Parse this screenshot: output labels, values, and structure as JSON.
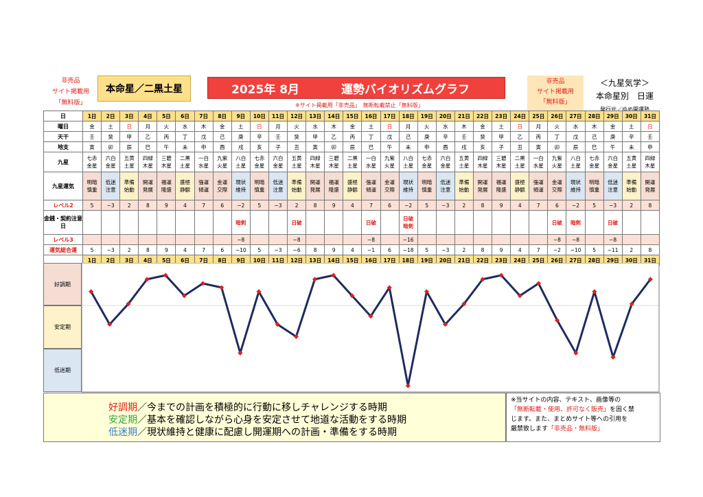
{
  "header": {
    "note_left_1": "非売品",
    "note_left_2": "サイト掲載用",
    "note_left_3": "「無料版」",
    "honmei": "本命星／二黒土星",
    "year_month": "2025年 8月",
    "title": "運勢バイオリズムグラフ",
    "note_right_1": "非売品",
    "note_right_2": "サイト掲載用",
    "note_right_3": "「無料版」",
    "right_1": "＜九星気学＞",
    "right_2": "本命星別　日運",
    "right_3": "発行元／ゆめ開運塾",
    "subnote": "※サイト掲載用「非売品」　無断転載禁止「無料版」"
  },
  "labels": {
    "day": "日",
    "weekday": "曜日",
    "tenkan": "天干",
    "chishi": "地支",
    "kyusei": "九星",
    "unki": "九星運気",
    "level2": "レベル2",
    "kinsen": "金銭・契約注意日",
    "level3": "レベル3",
    "total": "運気総合運"
  },
  "days": [
    "1日",
    "2日",
    "3日",
    "4日",
    "5日",
    "6日",
    "7日",
    "8日",
    "9日",
    "10日",
    "11日",
    "12日",
    "13日",
    "14日",
    "15日",
    "16日",
    "17日",
    "18日",
    "19日",
    "20日",
    "21日",
    "22日",
    "23日",
    "24日",
    "25日",
    "26日",
    "27日",
    "28日",
    "29日",
    "30日",
    "31日"
  ],
  "weekdays": [
    "金",
    "土",
    "日",
    "月",
    "火",
    "水",
    "木",
    "金",
    "土",
    "日",
    "月",
    "火",
    "水",
    "木",
    "金",
    "土",
    "日",
    "月",
    "火",
    "水",
    "木",
    "金",
    "土",
    "日",
    "月",
    "火",
    "水",
    "木",
    "金",
    "土",
    "日"
  ],
  "tenkan": [
    "壬",
    "癸",
    "甲",
    "乙",
    "丙",
    "丁",
    "戊",
    "己",
    "庚",
    "辛",
    "壬",
    "癸",
    "甲",
    "乙",
    "丙",
    "丁",
    "戊",
    "己",
    "庚",
    "辛",
    "壬",
    "癸",
    "甲",
    "乙",
    "丙",
    "丁",
    "戊",
    "己",
    "庚",
    "辛",
    "壬"
  ],
  "chishi": [
    "寅",
    "卯",
    "辰",
    "巳",
    "午",
    "未",
    "申",
    "酉",
    "戌",
    "亥",
    "子",
    "丑",
    "寅",
    "卯",
    "辰",
    "巳",
    "午",
    "未",
    "申",
    "酉",
    "戌",
    "亥",
    "子",
    "丑",
    "寅",
    "卯",
    "辰",
    "巳",
    "午",
    "未",
    "申"
  ],
  "kyusei_a": [
    "七赤",
    "六白",
    "五黄",
    "四緑",
    "三碧",
    "二黒",
    "一白",
    "九紫",
    "八白",
    "七赤",
    "六白",
    "五黄",
    "四緑",
    "三碧",
    "二黒",
    "一白",
    "九紫",
    "八白",
    "七赤",
    "六白",
    "五黄",
    "四緑",
    "三碧",
    "二黒",
    "一白",
    "九紫",
    "八白",
    "七赤",
    "六白",
    "五黄",
    "四緑"
  ],
  "kyusei_b": [
    "金星",
    "金星",
    "土星",
    "木星",
    "木星",
    "土星",
    "水星",
    "火星",
    "土星",
    "金星",
    "金星",
    "土星",
    "木星",
    "木星",
    "土星",
    "水星",
    "火星",
    "土星",
    "金星",
    "金星",
    "土星",
    "木星",
    "木星",
    "土星",
    "水星",
    "火星",
    "土星",
    "金星",
    "金星",
    "土星",
    "木星"
  ],
  "unki_a": [
    "明暗",
    "低迷",
    "準備",
    "開運",
    "福運",
    "盛極",
    "強運",
    "金運",
    "現状",
    "明暗",
    "低迷",
    "準備",
    "開運",
    "福運",
    "盛極",
    "強運",
    "金運",
    "現状",
    "明暗",
    "低迷",
    "準備",
    "開運",
    "福運",
    "盛極",
    "強運",
    "金運",
    "現状",
    "明暗",
    "低迷",
    "準備",
    "開運"
  ],
  "unki_b": [
    "慎重",
    "注意",
    "始動",
    "発展",
    "隆盛",
    "静観",
    "傾運",
    "交際",
    "維持",
    "慎重",
    "注意",
    "始動",
    "発展",
    "隆盛",
    "静観",
    "傾運",
    "交際",
    "維持",
    "慎重",
    "注意",
    "始動",
    "発展",
    "隆盛",
    "静観",
    "傾運",
    "交際",
    "維持",
    "慎重",
    "注意",
    "始動",
    "発展"
  ],
  "level2": [
    "5",
    "−3",
    "2",
    "8",
    "9",
    "4",
    "7",
    "6",
    "−2",
    "5",
    "−3",
    "2",
    "8",
    "9",
    "4",
    "7",
    "6",
    "−2",
    "5",
    "−3",
    "2",
    "8",
    "9",
    "4",
    "7",
    "6",
    "−2",
    "5",
    "−3",
    "2",
    "8"
  ],
  "kinsen_1": [
    "",
    "",
    "",
    "",
    "",
    "",
    "",
    "",
    "暗剣",
    "",
    "",
    "日破",
    "",
    "",
    "",
    "日破",
    "",
    "日破",
    "",
    "",
    "",
    "",
    "",
    "",
    "",
    "日破",
    "暗剣",
    "",
    "日破",
    "",
    ""
  ],
  "kinsen_2": [
    "",
    "",
    "",
    "",
    "",
    "",
    "",
    "",
    "",
    "",
    "",
    "",
    "",
    "",
    "",
    "",
    "",
    "暗剣",
    "",
    "",
    "",
    "",
    "",
    "",
    "",
    "",
    "",
    "",
    "",
    "",
    ""
  ],
  "level3": [
    "",
    "",
    "",
    "",
    "",
    "",
    "",
    "",
    "−8",
    "",
    "",
    "−8",
    "",
    "",
    "",
    "−8",
    "",
    "−16",
    "",
    "",
    "",
    "",
    "",
    "",
    "",
    "−8",
    "−8",
    "",
    "−8",
    "",
    ""
  ],
  "total": [
    "5",
    "−3",
    "2",
    "8",
    "9",
    "4",
    "7",
    "6",
    "−10",
    "5",
    "−3",
    "−6",
    "8",
    "9",
    "4",
    "−1",
    "6",
    "−18",
    "5",
    "−3",
    "2",
    "8",
    "9",
    "4",
    "7",
    "−2",
    "−10",
    "5",
    "−11",
    "2",
    "8"
  ],
  "zones": {
    "good": "好調期",
    "stable": "安定期",
    "low": "低迷期"
  },
  "legend": {
    "good_key": "好調期",
    "good_text": "／今までの計画を積極的に行動に移しチャレンジする時期",
    "stable_key": "安定期",
    "stable_text": "／基本を確認しながら心身を安定させて地道な活動をする時期",
    "low_key": "低迷期",
    "low_text": "／現状維持と健康に配慮し開運期への計画・準備をする時期"
  },
  "notice": {
    "l1": "※当サイトの内容、テキスト、画像等の",
    "l2a": "「無断転載・使用、許可なく販売」",
    "l2b": "を固く禁",
    "l3": "じます。また、まとめサイト等への引用を",
    "l4a": "厳禁致します",
    "l4b": "「非売品・無料版」"
  },
  "colors": {
    "line": "#1f2a5e",
    "point": "#e0201a",
    "good": "#f6ddd3",
    "stable": "#fdf2c9",
    "low": "#dbe6f3"
  },
  "chart_data": {
    "type": "line",
    "x": [
      1,
      2,
      3,
      4,
      5,
      6,
      7,
      8,
      9,
      10,
      11,
      12,
      13,
      14,
      15,
      16,
      17,
      18,
      19,
      20,
      21,
      22,
      23,
      24,
      25,
      26,
      27,
      28,
      29,
      30,
      31
    ],
    "values": [
      5,
      -3,
      2,
      8,
      9,
      4,
      7,
      6,
      -10,
      5,
      -3,
      -6,
      8,
      9,
      4,
      -1,
      6,
      -18,
      5,
      -3,
      2,
      8,
      9,
      4,
      7,
      -2,
      -10,
      5,
      -11,
      2,
      8
    ],
    "ylim": [
      -18,
      10
    ],
    "grid": false
  }
}
